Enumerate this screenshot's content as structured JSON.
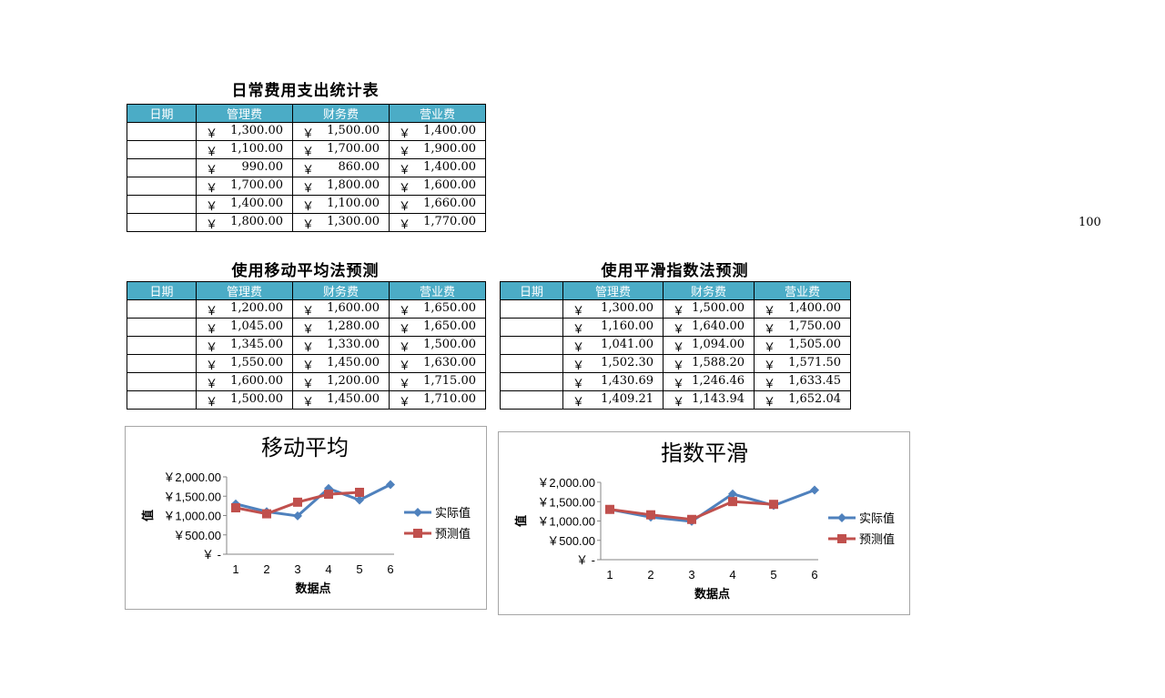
{
  "table1": {
    "title": "日常费用支出统计表",
    "headers": [
      "日期",
      "管理费",
      "财务费",
      "营业费"
    ],
    "rows": [
      [
        "",
        "1,300.00",
        "1,500.00",
        "1,400.00"
      ],
      [
        "",
        "1,100.00",
        "1,700.00",
        "1,900.00"
      ],
      [
        "",
        "990.00",
        "860.00",
        "1,400.00"
      ],
      [
        "",
        "1,700.00",
        "1,800.00",
        "1,600.00"
      ],
      [
        "",
        "1,400.00",
        "1,100.00",
        "1,660.00"
      ],
      [
        "",
        "1,800.00",
        "1,300.00",
        "1,770.00"
      ]
    ]
  },
  "stray_value": "100",
  "table2": {
    "title": "使用移动平均法预测",
    "headers": [
      "日期",
      "管理费",
      "财务费",
      "营业费"
    ],
    "rows": [
      [
        "",
        "1,200.00",
        "1,600.00",
        "1,650.00"
      ],
      [
        "",
        "1,045.00",
        "1,280.00",
        "1,650.00"
      ],
      [
        "",
        "1,345.00",
        "1,330.00",
        "1,500.00"
      ],
      [
        "",
        "1,550.00",
        "1,450.00",
        "1,630.00"
      ],
      [
        "",
        "1,600.00",
        "1,200.00",
        "1,715.00"
      ],
      [
        "",
        "1,500.00",
        "1,450.00",
        "1,710.00"
      ]
    ]
  },
  "table3": {
    "title": "使用平滑指数法预测",
    "headers": [
      "日期",
      "管理费",
      "财务费",
      "营业费"
    ],
    "rows": [
      [
        "",
        "1,300.00",
        "1,500.00",
        "1,400.00"
      ],
      [
        "",
        "1,160.00",
        "1,640.00",
        "1,750.00"
      ],
      [
        "",
        "1,041.00",
        "1,094.00",
        "1,505.00"
      ],
      [
        "",
        "1,502.30",
        "1,588.20",
        "1,571.50"
      ],
      [
        "",
        "1,430.69",
        "1,246.46",
        "1,633.45"
      ],
      [
        "",
        "1,409.21",
        "1,143.94",
        "1,652.04"
      ]
    ]
  },
  "currency_symbol": "￥",
  "colors": {
    "header_bg": "#4bacc6",
    "series_actual": "#4f81bd",
    "series_forecast": "#c0504d"
  },
  "chart_data": [
    {
      "type": "line",
      "title": "移动平均",
      "xlabel": "数据点",
      "ylabel": "值",
      "x": [
        1,
        2,
        3,
        4,
        5,
        6
      ],
      "ylim": [
        0,
        2000
      ],
      "yticks": [
        "￥2,000.00",
        "￥1,500.00",
        "￥1,000.00",
        "￥500.00",
        "￥ -"
      ],
      "legend_position": "right",
      "series": [
        {
          "name": "实际值",
          "values": [
            1300,
            1100,
            990,
            1700,
            1400,
            1800
          ]
        },
        {
          "name": "预测值",
          "values": [
            1200,
            1045,
            1345,
            1550,
            1600,
            null
          ]
        }
      ]
    },
    {
      "type": "line",
      "title": "指数平滑",
      "xlabel": "数据点",
      "ylabel": "值",
      "x": [
        1,
        2,
        3,
        4,
        5,
        6
      ],
      "ylim": [
        0,
        2000
      ],
      "yticks": [
        "￥2,000.00",
        "￥1,500.00",
        "￥1,000.00",
        "￥500.00",
        "￥ -"
      ],
      "legend_position": "right",
      "series": [
        {
          "name": "实际值",
          "values": [
            1300,
            1100,
            990,
            1700,
            1400,
            1800
          ]
        },
        {
          "name": "预测值",
          "values": [
            1300,
            1160,
            1041,
            1502.3,
            1430.69,
            null
          ]
        }
      ]
    }
  ]
}
